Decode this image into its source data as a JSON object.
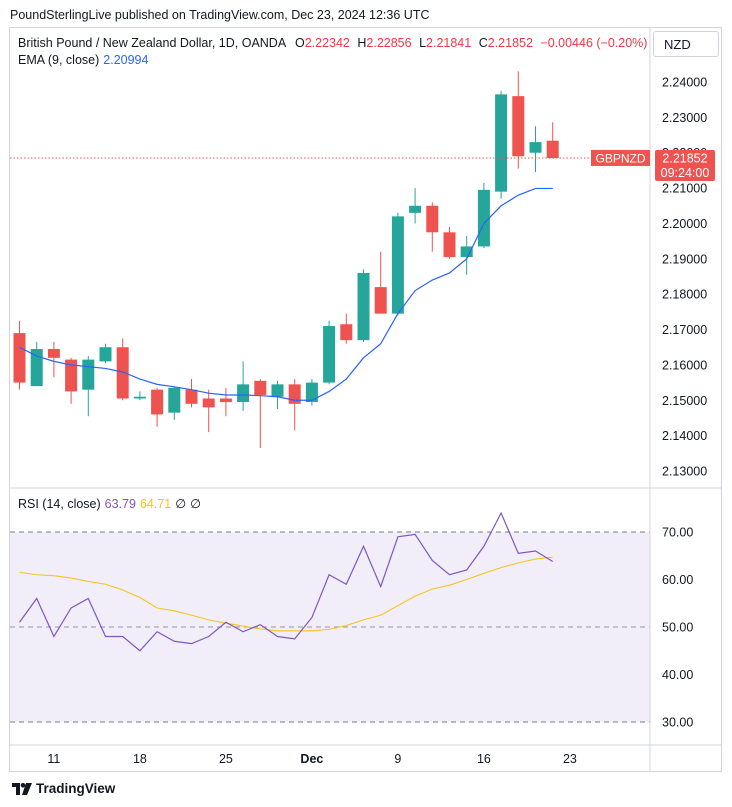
{
  "header": {
    "published_line": "PoundSterlingLive published on TradingView.com, Dec 23, 2024 12:36 UTC"
  },
  "legend": {
    "symbol": "British Pound / New Zealand Dollar, 1D, OANDA",
    "o_label": "O",
    "o_value": "2.22342",
    "h_label": "H",
    "h_value": "2.22856",
    "l_label": "L",
    "l_value": "2.21841",
    "c_label": "C",
    "c_value": "2.21852",
    "change": "−0.00446 (−0.20%)",
    "ema_label": "EMA (9, close)",
    "ema_value": "2.20994",
    "rsi_label": "RSI (14, close)",
    "rsi_value": "63.79",
    "rsi_ma_value": "64.71",
    "rsi_extra1": "∅",
    "rsi_extra2": "∅"
  },
  "currency_button": "NZD",
  "price_tag": {
    "symbol": "GBPNZD",
    "price": "2.21852",
    "countdown": "09:24:00"
  },
  "footer": {
    "brand": "TradingView"
  },
  "colors": {
    "up": "#26a69a",
    "down": "#ef5350",
    "ema": "#2962ff",
    "rsi": "#7e57c2",
    "rsi_ma": "#f7c51c",
    "rsi_band": "#f1eefa"
  },
  "chart_data": [
    {
      "type": "candlestick",
      "title": "British Pound / New Zealand Dollar, 1D, OANDA",
      "ylim": [
        2.125,
        2.252
      ],
      "y_ticks": [
        "2.24000",
        "2.23000",
        "2.22000",
        "2.21000",
        "2.20000",
        "2.19000",
        "2.18000",
        "2.17000",
        "2.16000",
        "2.15000",
        "2.14000",
        "2.13000"
      ],
      "x_ticks": [
        {
          "label": "11",
          "index": 2
        },
        {
          "label": "18",
          "index": 7
        },
        {
          "label": "25",
          "index": 12
        },
        {
          "label": "Dec",
          "index": 17
        },
        {
          "label": "9",
          "index": 22
        },
        {
          "label": "16",
          "index": 27
        },
        {
          "label": "23",
          "index": 32
        }
      ],
      "candles": [
        {
          "o": 2.169,
          "h": 2.1725,
          "l": 2.153,
          "c": 2.155
        },
        {
          "o": 2.154,
          "h": 2.1665,
          "l": 2.154,
          "c": 2.1645
        },
        {
          "o": 2.1645,
          "h": 2.1665,
          "l": 2.1565,
          "c": 2.162
        },
        {
          "o": 2.1615,
          "h": 2.162,
          "l": 2.149,
          "c": 2.1525
        },
        {
          "o": 2.153,
          "h": 2.1625,
          "l": 2.1455,
          "c": 2.1615
        },
        {
          "o": 2.161,
          "h": 2.166,
          "l": 2.1605,
          "c": 2.165
        },
        {
          "o": 2.165,
          "h": 2.1675,
          "l": 2.15,
          "c": 2.1505
        },
        {
          "o": 2.1505,
          "h": 2.1525,
          "l": 2.15,
          "c": 2.151
        },
        {
          "o": 2.153,
          "h": 2.1535,
          "l": 2.1425,
          "c": 2.146
        },
        {
          "o": 2.1465,
          "h": 2.154,
          "l": 2.1445,
          "c": 2.1535
        },
        {
          "o": 2.153,
          "h": 2.156,
          "l": 2.148,
          "c": 2.149
        },
        {
          "o": 2.1505,
          "h": 2.153,
          "l": 2.141,
          "c": 2.148
        },
        {
          "o": 2.1505,
          "h": 2.1535,
          "l": 2.1455,
          "c": 2.1495
        },
        {
          "o": 2.1495,
          "h": 2.161,
          "l": 2.147,
          "c": 2.1545
        },
        {
          "o": 2.1555,
          "h": 2.156,
          "l": 2.1365,
          "c": 2.1515
        },
        {
          "o": 2.151,
          "h": 2.1555,
          "l": 2.1475,
          "c": 2.1545
        },
        {
          "o": 2.1545,
          "h": 2.156,
          "l": 2.1415,
          "c": 2.149
        },
        {
          "o": 2.1495,
          "h": 2.156,
          "l": 2.1485,
          "c": 2.155
        },
        {
          "o": 2.155,
          "h": 2.1725,
          "l": 2.1545,
          "c": 2.171
        },
        {
          "o": 2.1715,
          "h": 2.1745,
          "l": 2.166,
          "c": 2.167
        },
        {
          "o": 2.167,
          "h": 2.187,
          "l": 2.1665,
          "c": 2.186
        },
        {
          "o": 2.182,
          "h": 2.192,
          "l": 2.1745,
          "c": 2.1745
        },
        {
          "o": 2.1745,
          "h": 2.203,
          "l": 2.174,
          "c": 2.202
        },
        {
          "o": 2.203,
          "h": 2.21,
          "l": 2.2,
          "c": 2.205
        },
        {
          "o": 2.205,
          "h": 2.206,
          "l": 2.192,
          "c": 2.1975
        },
        {
          "o": 2.1975,
          "h": 2.199,
          "l": 2.19,
          "c": 2.1905
        },
        {
          "o": 2.1905,
          "h": 2.1965,
          "l": 2.1855,
          "c": 2.1935
        },
        {
          "o": 2.1935,
          "h": 2.2115,
          "l": 2.193,
          "c": 2.2095
        },
        {
          "o": 2.209,
          "h": 2.2375,
          "l": 2.207,
          "c": 2.2365
        },
        {
          "o": 2.236,
          "h": 2.243,
          "l": 2.2155,
          "c": 2.219
        },
        {
          "o": 2.22,
          "h": 2.2275,
          "l": 2.2145,
          "c": 2.223
        },
        {
          "o": 2.2234,
          "h": 2.2286,
          "l": 2.2184,
          "c": 2.2185
        }
      ],
      "ema_9": [
        2.165,
        2.1625,
        2.161,
        2.16,
        2.1595,
        2.159,
        2.158,
        2.156,
        2.1545,
        2.1538,
        2.153,
        2.152,
        2.1515,
        2.1515,
        2.1513,
        2.151,
        2.15,
        2.15,
        2.1525,
        2.156,
        2.162,
        2.166,
        2.1745,
        2.181,
        2.184,
        2.186,
        2.19,
        2.2,
        2.205,
        2.208,
        2.2099,
        2.2099
      ],
      "current_price": 2.21852
    },
    {
      "type": "line",
      "title": "RSI (14, close)",
      "ylim": [
        26,
        75
      ],
      "y_ticks": [
        "70.00",
        "60.00",
        "50.00",
        "40.00",
        "30.00"
      ],
      "bands": {
        "upper": 70,
        "middle": 50,
        "lower": 30
      },
      "series": [
        {
          "name": "RSI",
          "values": [
            51,
            56,
            48,
            54,
            56,
            48,
            48,
            45,
            49,
            47,
            46.5,
            48,
            51,
            49,
            50.5,
            48,
            47.5,
            52,
            61,
            59,
            67,
            58.5,
            69,
            69.5,
            64,
            61,
            62,
            67,
            74,
            65.5,
            66,
            63.79
          ]
        },
        {
          "name": "RSI MA",
          "values": [
            61.5,
            61,
            60.8,
            60.3,
            59.6,
            59,
            57.8,
            56.2,
            54,
            53.4,
            52.5,
            51.5,
            50.8,
            50.2,
            49.6,
            49.2,
            49.2,
            49.2,
            49.5,
            50.3,
            51.5,
            52.5,
            54.5,
            56.5,
            58,
            58.8,
            60,
            61.3,
            62.5,
            63.5,
            64.3,
            64.71
          ]
        }
      ]
    }
  ]
}
